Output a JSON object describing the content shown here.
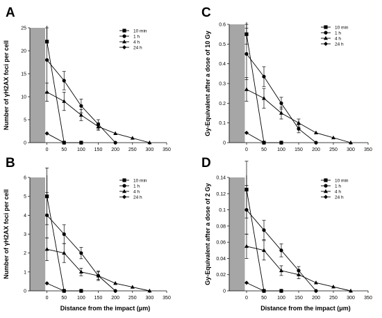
{
  "chart_data": [
    {
      "panel": "A",
      "type": "line",
      "ylabel": "Number of γH2AX foci per cell",
      "xlabel": "",
      "xlim": [
        -50,
        350
      ],
      "ylim": [
        0,
        25
      ],
      "xticks": [
        0,
        50,
        100,
        150,
        200,
        250,
        300,
        350
      ],
      "yticks": [
        0,
        5,
        10,
        15,
        20,
        25
      ],
      "shaded_region": [
        -50,
        -5
      ],
      "legend": "top-right",
      "series": [
        {
          "name": "10 min",
          "marker": "square",
          "points": [
            [
              0,
              22
            ],
            [
              50,
              0
            ],
            [
              100,
              0
            ]
          ],
          "err": [
            null,
            null,
            null
          ]
        },
        {
          "name": "1 h",
          "marker": "circle",
          "points": [
            [
              0,
              18
            ],
            [
              50,
              13.5
            ],
            [
              100,
              8
            ],
            [
              150,
              4
            ],
            [
              200,
              0
            ]
          ],
          "err": [
            7,
            2,
            1.5,
            1,
            null
          ]
        },
        {
          "name": "4 h",
          "marker": "triangle",
          "points": [
            [
              0,
              11
            ],
            [
              50,
              9
            ],
            [
              100,
              6
            ],
            [
              150,
              3.5
            ],
            [
              200,
              2
            ],
            [
              250,
              1
            ],
            [
              300,
              0
            ]
          ],
          "err": [
            2,
            2,
            1.2,
            0.8,
            null,
            null,
            null
          ]
        },
        {
          "name": "24 h",
          "marker": "diamond",
          "points": [
            [
              0,
              2
            ],
            [
              50,
              0
            ],
            [
              100,
              0
            ]
          ],
          "err": [
            null,
            null,
            null
          ]
        }
      ]
    },
    {
      "panel": "B",
      "type": "line",
      "ylabel": "Number of γH2AX foci per cell",
      "xlabel": "Distance from the impact (μm)",
      "xlim": [
        -50,
        350
      ],
      "ylim": [
        0,
        6
      ],
      "xticks": [
        0,
        50,
        100,
        150,
        200,
        250,
        300,
        350
      ],
      "yticks": [
        0,
        1,
        2,
        3,
        4,
        5,
        6
      ],
      "shaded_region": [
        -50,
        -5
      ],
      "legend": "top-right",
      "series": [
        {
          "name": "10 min",
          "marker": "square",
          "points": [
            [
              0,
              5
            ],
            [
              50,
              0
            ],
            [
              100,
              0
            ]
          ],
          "err": [
            1.5,
            null,
            null
          ]
        },
        {
          "name": "1 h",
          "marker": "circle",
          "points": [
            [
              0,
              4
            ],
            [
              50,
              3
            ],
            [
              100,
              2
            ],
            [
              150,
              0.8
            ],
            [
              200,
              0
            ]
          ],
          "err": [
            1.2,
            0.5,
            0.3,
            0.25,
            null
          ]
        },
        {
          "name": "4 h",
          "marker": "triangle",
          "points": [
            [
              0,
              2.2
            ],
            [
              50,
              2
            ],
            [
              100,
              1
            ],
            [
              150,
              0.8
            ],
            [
              200,
              0.4
            ],
            [
              250,
              0.2
            ],
            [
              300,
              0
            ]
          ],
          "err": [
            0.6,
            0.5,
            0.2,
            0.2,
            null,
            null,
            null
          ]
        },
        {
          "name": "24 h",
          "marker": "diamond",
          "points": [
            [
              0,
              0.4
            ],
            [
              50,
              0
            ],
            [
              100,
              0
            ]
          ],
          "err": [
            null,
            null,
            null
          ]
        }
      ]
    },
    {
      "panel": "C",
      "type": "line",
      "ylabel": "Gy-Equivalent after a dose of 10 Gy",
      "xlabel": "",
      "xlim": [
        -50,
        350
      ],
      "ylim": [
        0,
        0.6
      ],
      "xticks": [
        0,
        50,
        100,
        150,
        200,
        250,
        300,
        350
      ],
      "yticks": [
        0,
        0.1,
        0.2,
        0.3,
        0.4,
        0.5,
        0.6
      ],
      "ytick_labels": [
        "0",
        "0.1",
        "0.2",
        "0.3",
        "0.4",
        "0.5",
        "0.6"
      ],
      "shaded_region": [
        -50,
        -5
      ],
      "legend": "top-right",
      "series": [
        {
          "name": "10 min",
          "marker": "square",
          "points": [
            [
              0,
              0.55
            ],
            [
              50,
              0
            ],
            [
              100,
              0
            ]
          ],
          "err": [
            0.05,
            null,
            null
          ]
        },
        {
          "name": "1 h",
          "marker": "circle",
          "points": [
            [
              0,
              0.45
            ],
            [
              50,
              0.335
            ],
            [
              100,
              0.2
            ],
            [
              150,
              0.07
            ],
            [
              200,
              0
            ]
          ],
          "err": [
            0.13,
            0.05,
            0.03,
            0.02,
            null
          ]
        },
        {
          "name": "4 h",
          "marker": "triangle",
          "points": [
            [
              0,
              0.27
            ],
            [
              50,
              0.225
            ],
            [
              100,
              0.15
            ],
            [
              150,
              0.1
            ],
            [
              200,
              0.05
            ],
            [
              250,
              0.025
            ],
            [
              300,
              0
            ]
          ],
          "err": [
            0.06,
            0.05,
            0.03,
            0.02,
            null,
            null,
            null
          ]
        },
        {
          "name": "24 h",
          "marker": "diamond",
          "points": [
            [
              0,
              0.05
            ],
            [
              50,
              0
            ],
            [
              100,
              0
            ]
          ],
          "err": [
            null,
            null,
            null
          ]
        }
      ]
    },
    {
      "panel": "D",
      "type": "line",
      "ylabel": "Gy-Equivalent after a dose of 2 Gy",
      "xlabel": "Distance from the impact (μm)",
      "xlim": [
        -50,
        350
      ],
      "ylim": [
        0,
        0.14
      ],
      "xticks": [
        0,
        50,
        100,
        150,
        200,
        250,
        300,
        350
      ],
      "yticks": [
        0,
        0.02,
        0.04,
        0.06,
        0.08,
        0.1,
        0.12,
        0.14
      ],
      "ytick_labels": [
        "0",
        "0.02",
        "0.04",
        "0.06",
        "0.08",
        "0.1",
        "0.12",
        "0.14"
      ],
      "shaded_region": [
        -50,
        -5
      ],
      "legend": "top-right",
      "series": [
        {
          "name": "10 min",
          "marker": "square",
          "points": [
            [
              0,
              0.125
            ],
            [
              50,
              0
            ],
            [
              100,
              0
            ]
          ],
          "err": [
            0.035,
            null,
            null
          ]
        },
        {
          "name": "1 h",
          "marker": "circle",
          "points": [
            [
              0,
              0.1
            ],
            [
              50,
              0.075
            ],
            [
              100,
              0.05
            ],
            [
              150,
              0.025
            ],
            [
              200,
              0
            ]
          ],
          "err": [
            0.03,
            0.012,
            0.008,
            0.005,
            null
          ]
        },
        {
          "name": "4 h",
          "marker": "triangle",
          "points": [
            [
              0,
              0.055
            ],
            [
              50,
              0.05
            ],
            [
              100,
              0.025
            ],
            [
              150,
              0.02
            ],
            [
              200,
              0.01
            ],
            [
              250,
              0.005
            ],
            [
              300,
              0
            ]
          ],
          "err": [
            0.015,
            0.012,
            0.006,
            0.005,
            null,
            null,
            null
          ]
        },
        {
          "name": "24 h",
          "marker": "diamond",
          "points": [
            [
              0,
              0.01
            ],
            [
              50,
              0
            ],
            [
              100,
              0
            ]
          ],
          "err": [
            null,
            null,
            null
          ]
        }
      ]
    }
  ]
}
